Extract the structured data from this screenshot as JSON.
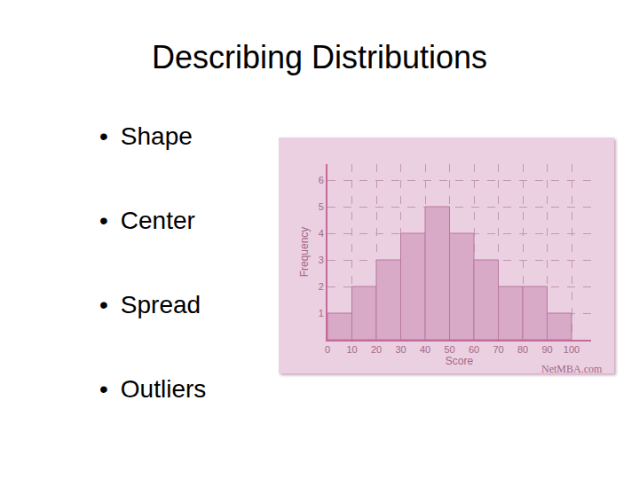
{
  "slide": {
    "title": "Describing Distributions",
    "bullets": [
      "Shape",
      "Center",
      "Spread",
      "Outliers"
    ]
  },
  "chart_data": {
    "type": "histogram",
    "x_label": "Score",
    "y_label": "Frequency",
    "bins": [
      0,
      10,
      20,
      30,
      40,
      50,
      60,
      70,
      80,
      90,
      100
    ],
    "values": [
      1,
      2,
      3,
      4,
      5,
      4,
      3,
      2,
      2,
      1
    ],
    "color": "#d9aac8",
    "xlim": [
      0,
      108
    ],
    "xticks": [
      0,
      10,
      20,
      30,
      40,
      50,
      60,
      70,
      80,
      90,
      100
    ],
    "ylim": [
      0,
      6.6
    ],
    "yticks": [
      1,
      2,
      3,
      4,
      5,
      6
    ],
    "grid": true,
    "annotations": [
      "NetMBA.com"
    ]
  }
}
